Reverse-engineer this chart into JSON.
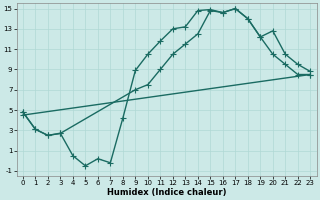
{
  "xlabel": "Humidex (Indice chaleur)",
  "bg_color": "#cce9e7",
  "line_color": "#1a6b62",
  "grid_color": "#b0d8d5",
  "xlim": [
    -0.5,
    23.5
  ],
  "ylim": [
    -1.5,
    15.5
  ],
  "yticks": [
    -1,
    1,
    3,
    5,
    7,
    9,
    11,
    13,
    15
  ],
  "xticks": [
    0,
    1,
    2,
    3,
    4,
    5,
    6,
    7,
    8,
    9,
    10,
    11,
    12,
    13,
    14,
    15,
    16,
    17,
    18,
    19,
    20,
    21,
    22,
    23
  ],
  "line1_x": [
    0,
    1,
    2,
    3,
    4,
    5,
    6,
    7,
    8,
    9,
    10,
    11,
    12,
    13,
    14,
    15,
    16,
    17,
    18,
    19,
    20,
    21,
    22,
    23
  ],
  "line1_y": [
    4.8,
    3.1,
    2.5,
    2.7,
    0.5,
    -0.5,
    0.2,
    -0.2,
    4.2,
    8.9,
    10.5,
    11.8,
    13.0,
    13.2,
    14.8,
    14.9,
    14.6,
    15.0,
    14.0,
    12.2,
    10.5,
    9.5,
    8.5,
    8.5
  ],
  "line2_x": [
    0,
    1,
    2,
    3,
    9,
    10,
    11,
    12,
    13,
    14,
    15,
    16,
    17,
    18,
    19,
    20,
    21,
    22,
    23
  ],
  "line2_y": [
    4.8,
    3.1,
    2.5,
    2.7,
    7.0,
    7.5,
    9.0,
    10.5,
    11.5,
    12.5,
    14.8,
    14.6,
    15.0,
    14.0,
    12.2,
    12.8,
    10.5,
    9.5,
    8.8
  ],
  "line3_x": [
    0,
    23
  ],
  "line3_y": [
    4.5,
    8.5
  ],
  "markersize": 2.5,
  "linewidth": 1.0,
  "xlabel_fontsize": 6,
  "tick_fontsize": 5
}
